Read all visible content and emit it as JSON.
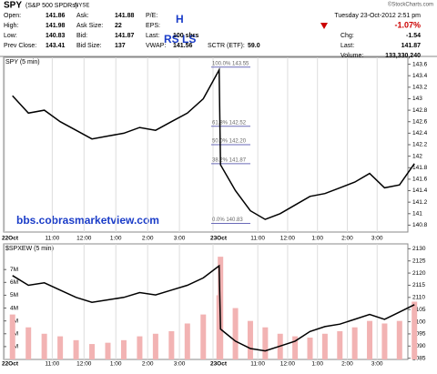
{
  "header": {
    "symbol": "SPY",
    "name": "(S&P 500 SPDRs)",
    "exchange": "NYSE",
    "copyright": "©StockCharts.com",
    "datetime": "Tuesday 23-Oct-2012 2:51 pm",
    "pct_change": "-1.07%",
    "quote": [
      [
        {
          "label": "Open:",
          "value": "141.86"
        },
        {
          "label": "Ask:",
          "value": "141.88"
        },
        {
          "label": "P/E:"
        }
      ],
      [
        {
          "label": "High:",
          "value": "141.98"
        },
        {
          "label": "Ask Size:",
          "value": "22"
        },
        {
          "label": "EPS:"
        }
      ],
      [
        {
          "label": "Low:",
          "value": "140.83"
        },
        {
          "label": "Bid:",
          "value": "141.87"
        },
        {
          "label": "Last:",
          "value": "100 shrs"
        }
      ],
      [
        {
          "label": "Prev Close:",
          "value": "143.41"
        },
        {
          "label": "Bid Size:",
          "value": "137"
        },
        {
          "label": "VWAP:",
          "value": "141.56"
        },
        {
          "label": "SCTR (ETF):",
          "value": "59.0"
        }
      ]
    ],
    "right": [
      {
        "label": "Chg:",
        "value": "-1.54"
      },
      {
        "label": "Last:",
        "value": "141.87"
      },
      {
        "label": "Volume:",
        "value": "133,330,240"
      }
    ]
  },
  "annotations": {
    "h": "H",
    "rs_ls": "RS LS",
    "website": "bbs.cobrasmarketview.com"
  },
  "chart_data": [
    {
      "type": "line",
      "title": "SPY (5 min)",
      "color": "#000000",
      "xtick_labels": [
        "22Oct",
        "11:00",
        "12:00",
        "1:00",
        "2:00",
        "3:00",
        "23Oct",
        "11:00",
        "12:00",
        "1:00",
        "2:00",
        "3:00"
      ],
      "values": [
        143.05,
        142.75,
        142.8,
        142.6,
        142.45,
        142.3,
        142.35,
        142.4,
        142.5,
        142.45,
        142.6,
        142.75,
        143.0,
        143.5,
        141.85,
        141.4,
        141.05,
        140.9,
        141.0,
        141.15,
        141.3,
        141.35,
        141.45,
        141.55,
        141.7,
        141.45,
        141.5,
        141.87
      ],
      "ylim": [
        140.68,
        143.72
      ],
      "yticks": [
        140.8,
        141.0,
        141.2,
        141.4,
        141.6,
        141.8,
        142.0,
        142.2,
        142.4,
        142.6,
        142.8,
        143.0,
        143.2,
        143.4,
        143.6
      ],
      "fib_levels": [
        {
          "value": 143.55,
          "label": "100.0% 143.55"
        },
        {
          "value": 142.52,
          "label": "61.8% 142.52"
        },
        {
          "value": 142.2,
          "label": "50.0% 142.20"
        },
        {
          "value": 141.87,
          "label": "38.2% 141.87"
        },
        {
          "value": 140.83,
          "label": "0.0% 140.83"
        }
      ]
    },
    {
      "type": "line",
      "title": "$SPXEW (5 min)",
      "color": "#000000",
      "volume_color": "#f2b3b3",
      "xtick_labels": [
        "22Oct",
        "11:00",
        "12:00",
        "1:00",
        "2:00",
        "3:00",
        "23Oct",
        "11:00",
        "12:00",
        "1:00",
        "2:00",
        "3:00"
      ],
      "values": [
        2119,
        2115,
        2116,
        2113,
        2110,
        2108,
        2109,
        2110,
        2112,
        2111,
        2113,
        2115,
        2118,
        2123,
        2097,
        2092,
        2089,
        2088,
        2090,
        2092,
        2096,
        2098,
        2099,
        2101,
        2103,
        2101,
        2104,
        2107
      ],
      "volume": [
        3500000,
        2500000,
        2000000,
        1800000,
        1500000,
        1200000,
        1300000,
        1500000,
        1800000,
        2000000,
        2200000,
        2800000,
        3500000,
        5000000,
        8000000,
        4000000,
        3000000,
        2500000,
        2000000,
        1800000,
        1700000,
        2000000,
        2200000,
        2500000,
        3000000,
        2800000,
        3000000,
        4500000
      ],
      "ylim": [
        2084.5,
        2132
      ],
      "yticks": [
        2085,
        2090,
        2095,
        2100,
        2105,
        2110,
        2115,
        2120,
        2125,
        2130
      ],
      "y2lim": [
        0,
        9000000
      ],
      "y2ticks": [
        {
          "value": 1000000,
          "label": "1M"
        },
        {
          "value": 2000000,
          "label": "2M"
        },
        {
          "value": 3000000,
          "label": "3M"
        },
        {
          "value": 4000000,
          "label": "4M"
        },
        {
          "value": 5000000,
          "label": "5M"
        },
        {
          "value": 6000000,
          "label": "6M"
        },
        {
          "value": 7000000,
          "label": "7M"
        }
      ]
    }
  ]
}
